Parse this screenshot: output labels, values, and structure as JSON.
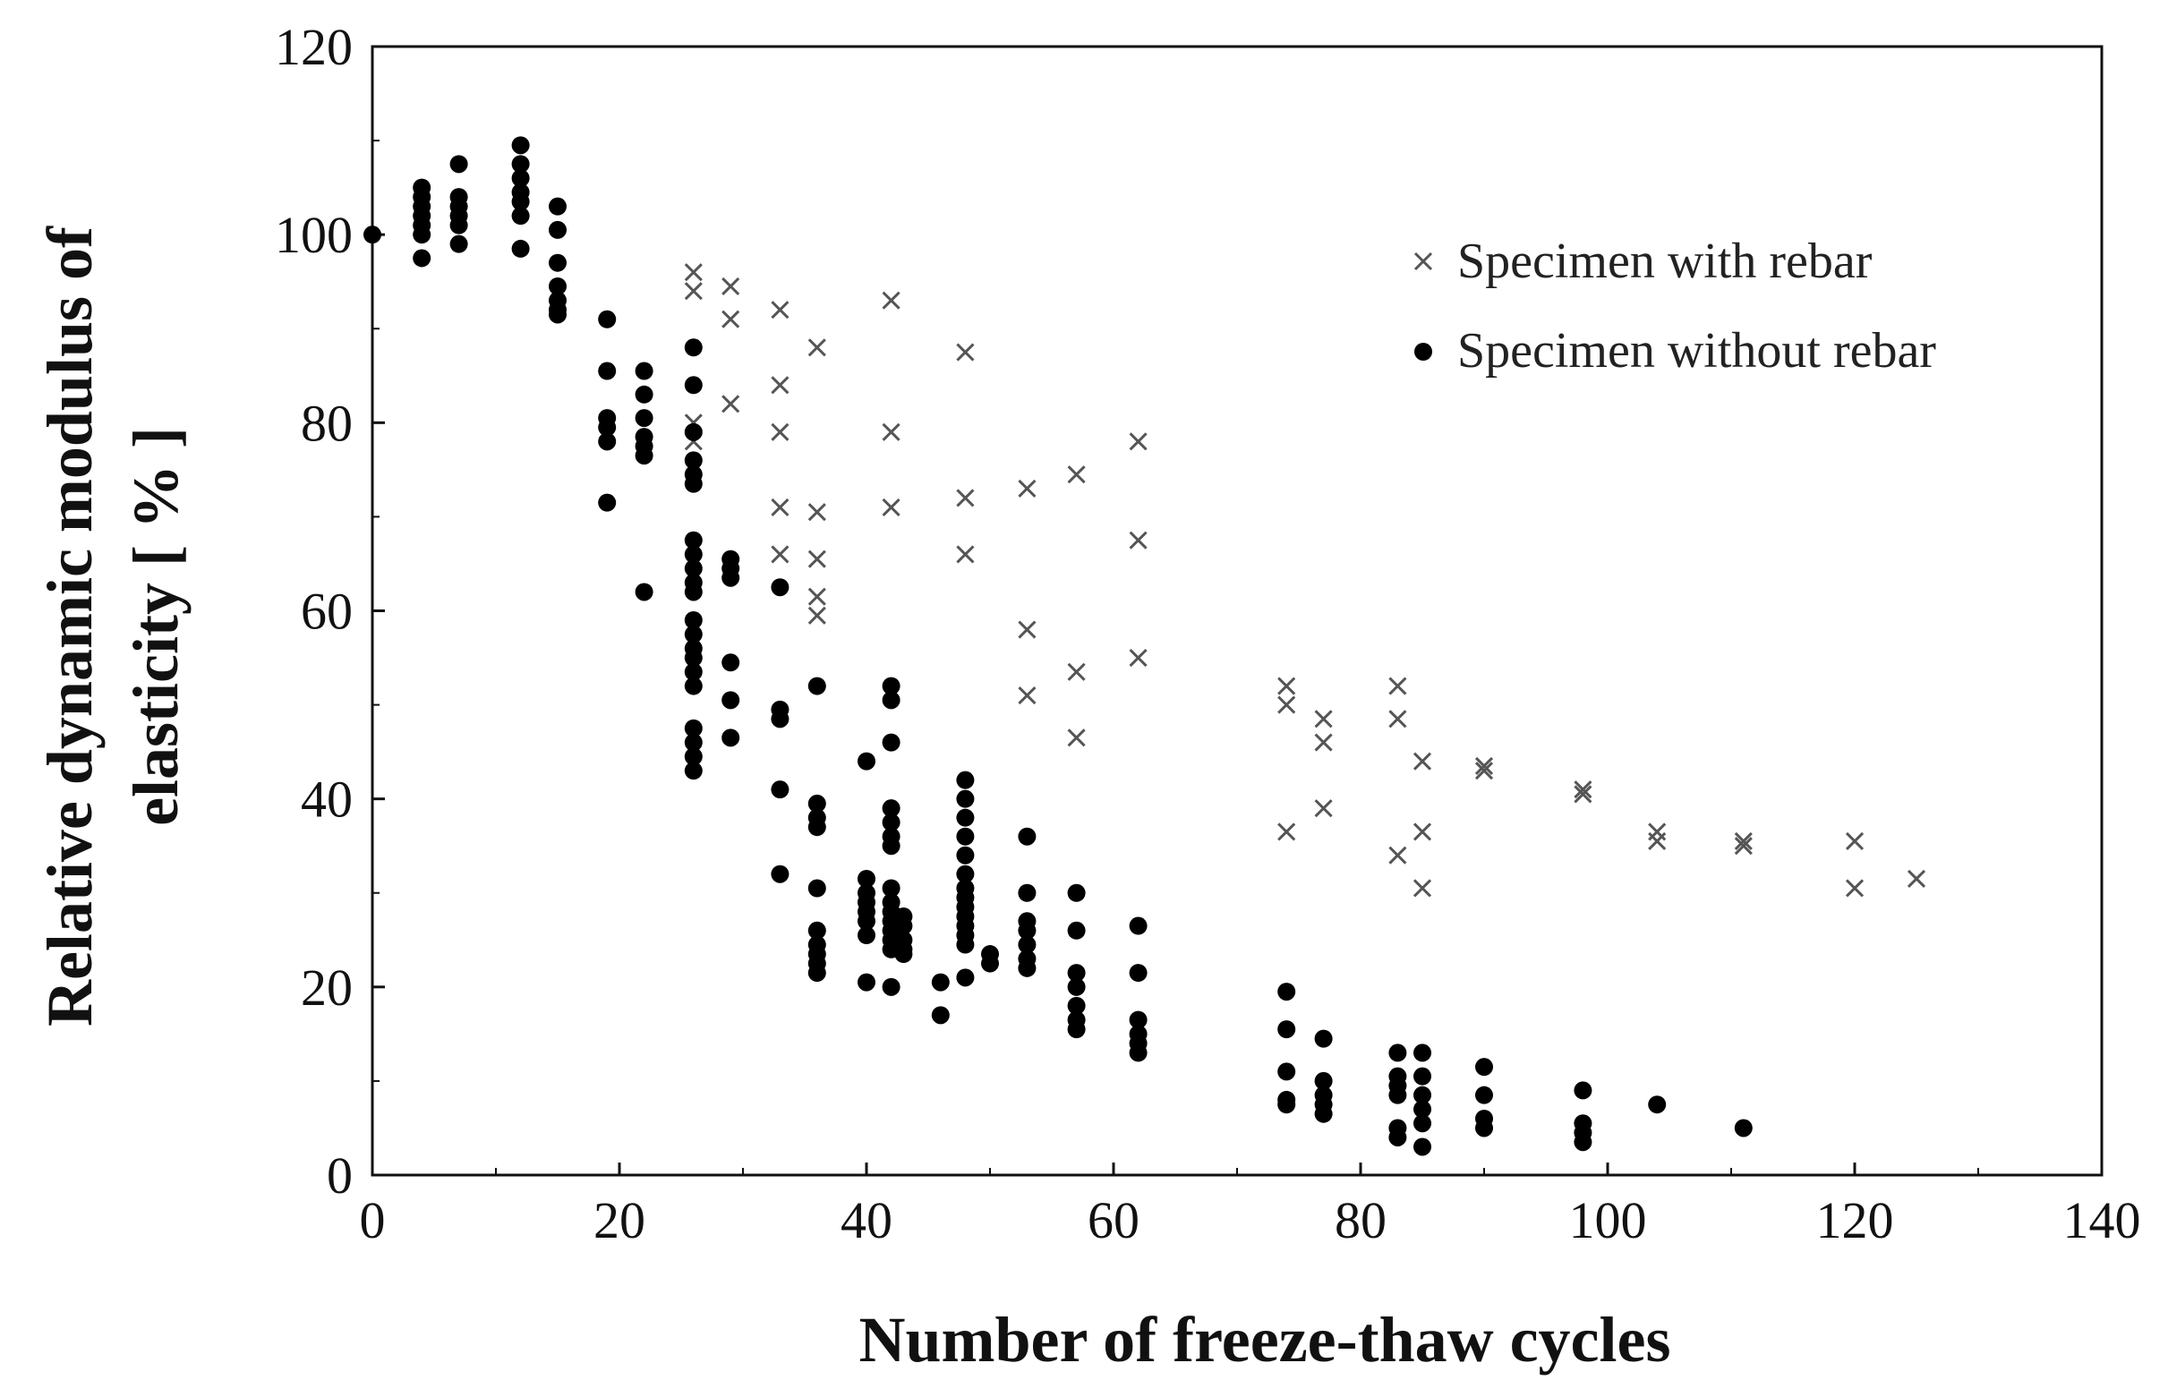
{
  "chart_data": {
    "type": "scatter",
    "title": "",
    "xlabel": "Number of freeze-thaw cycles",
    "ylabel_line1": "Relative dynamic modulus of",
    "ylabel_line2": "elasticity [ % ]",
    "xlim": [
      0,
      140
    ],
    "ylim": [
      0,
      120
    ],
    "xticks": [
      0,
      20,
      40,
      60,
      80,
      100,
      120,
      140
    ],
    "yticks": [
      0,
      20,
      40,
      60,
      80,
      100,
      120
    ],
    "xtick_labels": [
      "0",
      "20",
      "40",
      "60",
      "80",
      "100",
      "120",
      "140"
    ],
    "ytick_labels": [
      "0",
      "20",
      "40",
      "60",
      "80",
      "100",
      "120"
    ],
    "grid": false,
    "legend_position": "top-right",
    "series": [
      {
        "name": "Specimen with rebar",
        "marker": "x",
        "color": "#555555",
        "points": [
          [
            26,
            96
          ],
          [
            26,
            94
          ],
          [
            26,
            80
          ],
          [
            26,
            78
          ],
          [
            29,
            94.5
          ],
          [
            29,
            91
          ],
          [
            29,
            82
          ],
          [
            33,
            92
          ],
          [
            33,
            84
          ],
          [
            33,
            79
          ],
          [
            33,
            71
          ],
          [
            33,
            66
          ],
          [
            36,
            88
          ],
          [
            36,
            70.5
          ],
          [
            36,
            65.5
          ],
          [
            36,
            61.5
          ],
          [
            36,
            59.5
          ],
          [
            42,
            93
          ],
          [
            42,
            79
          ],
          [
            42,
            71
          ],
          [
            48,
            87.5
          ],
          [
            48,
            72
          ],
          [
            48,
            66
          ],
          [
            53,
            73
          ],
          [
            53,
            58
          ],
          [
            53,
            51
          ],
          [
            57,
            74.5
          ],
          [
            57,
            53.5
          ],
          [
            57,
            46.5
          ],
          [
            62,
            78
          ],
          [
            62,
            67.5
          ],
          [
            62,
            55
          ],
          [
            74,
            52
          ],
          [
            74,
            50
          ],
          [
            74,
            36.5
          ],
          [
            77,
            48.5
          ],
          [
            77,
            46
          ],
          [
            77,
            39
          ],
          [
            83,
            52
          ],
          [
            83,
            48.5
          ],
          [
            83,
            34
          ],
          [
            85,
            44
          ],
          [
            85,
            36.5
          ],
          [
            85,
            30.5
          ],
          [
            90,
            43.5
          ],
          [
            90,
            43
          ],
          [
            98,
            41
          ],
          [
            98,
            40.5
          ],
          [
            104,
            36.5
          ],
          [
            104,
            35.5
          ],
          [
            111,
            35.5
          ],
          [
            111,
            35
          ],
          [
            120,
            35.5
          ],
          [
            120,
            30.5
          ],
          [
            125,
            31.5
          ]
        ]
      },
      {
        "name": "Specimen without rebar",
        "marker": "dot",
        "color": "#000000",
        "points": [
          [
            0,
            100
          ],
          [
            4,
            105
          ],
          [
            4,
            104
          ],
          [
            4,
            103
          ],
          [
            4,
            102
          ],
          [
            4,
            101
          ],
          [
            4,
            100
          ],
          [
            4,
            97.5
          ],
          [
            7,
            107.5
          ],
          [
            7,
            104
          ],
          [
            7,
            103
          ],
          [
            7,
            102
          ],
          [
            7,
            101
          ],
          [
            7,
            99
          ],
          [
            12,
            109.5
          ],
          [
            12,
            107.5
          ],
          [
            12,
            106
          ],
          [
            12,
            104.5
          ],
          [
            12,
            103.5
          ],
          [
            12,
            102
          ],
          [
            12,
            98.5
          ],
          [
            15,
            103
          ],
          [
            15,
            100.5
          ],
          [
            15,
            97
          ],
          [
            15,
            94.5
          ],
          [
            15,
            93
          ],
          [
            15,
            92
          ],
          [
            15,
            91.5
          ],
          [
            19,
            91
          ],
          [
            19,
            85.5
          ],
          [
            19,
            80.5
          ],
          [
            19,
            79.5
          ],
          [
            19,
            78
          ],
          [
            19,
            71.5
          ],
          [
            22,
            85.5
          ],
          [
            22,
            83
          ],
          [
            22,
            80.5
          ],
          [
            22,
            78.5
          ],
          [
            22,
            77.5
          ],
          [
            22,
            76.5
          ],
          [
            22,
            62
          ],
          [
            26,
            88
          ],
          [
            26,
            84
          ],
          [
            26,
            79
          ],
          [
            26,
            76
          ],
          [
            26,
            74.5
          ],
          [
            26,
            73.5
          ],
          [
            26,
            67.5
          ],
          [
            26,
            66
          ],
          [
            26,
            64.5
          ],
          [
            26,
            63
          ],
          [
            26,
            62
          ],
          [
            26,
            59
          ],
          [
            26,
            57.5
          ],
          [
            26,
            56
          ],
          [
            26,
            55
          ],
          [
            26,
            53.5
          ],
          [
            26,
            52
          ],
          [
            26,
            47.5
          ],
          [
            26,
            46
          ],
          [
            26,
            44.5
          ],
          [
            26,
            43
          ],
          [
            29,
            65.5
          ],
          [
            29,
            64.5
          ],
          [
            29,
            63.5
          ],
          [
            29,
            54.5
          ],
          [
            29,
            50.5
          ],
          [
            29,
            46.5
          ],
          [
            33,
            62.5
          ],
          [
            33,
            49.5
          ],
          [
            33,
            48.5
          ],
          [
            33,
            41
          ],
          [
            33,
            32
          ],
          [
            36,
            52
          ],
          [
            36,
            39.5
          ],
          [
            36,
            38
          ],
          [
            36,
            37
          ],
          [
            36,
            30.5
          ],
          [
            36,
            26
          ],
          [
            36,
            24.5
          ],
          [
            36,
            23.5
          ],
          [
            36,
            22.5
          ],
          [
            36,
            21.5
          ],
          [
            40,
            44
          ],
          [
            40,
            31.5
          ],
          [
            40,
            30
          ],
          [
            40,
            29
          ],
          [
            40,
            28
          ],
          [
            40,
            27
          ],
          [
            40,
            25.5
          ],
          [
            40,
            20.5
          ],
          [
            42,
            52
          ],
          [
            42,
            50.5
          ],
          [
            42,
            46
          ],
          [
            42,
            39
          ],
          [
            42,
            37.5
          ],
          [
            42,
            36
          ],
          [
            42,
            35
          ],
          [
            42,
            30.5
          ],
          [
            42,
            29
          ],
          [
            42,
            28
          ],
          [
            42,
            27
          ],
          [
            42,
            26
          ],
          [
            42,
            25
          ],
          [
            42,
            24
          ],
          [
            42,
            20
          ],
          [
            43,
            27.5
          ],
          [
            43,
            26.5
          ],
          [
            43,
            25
          ],
          [
            43,
            24
          ],
          [
            43,
            23.5
          ],
          [
            46,
            20.5
          ],
          [
            46,
            17
          ],
          [
            48,
            42
          ],
          [
            48,
            40
          ],
          [
            48,
            38
          ],
          [
            48,
            36
          ],
          [
            48,
            34
          ],
          [
            48,
            32
          ],
          [
            48,
            30.5
          ],
          [
            48,
            29.5
          ],
          [
            48,
            28.5
          ],
          [
            48,
            27.5
          ],
          [
            48,
            26.5
          ],
          [
            48,
            25.5
          ],
          [
            48,
            24.5
          ],
          [
            48,
            21
          ],
          [
            50,
            23.5
          ],
          [
            50,
            22.5
          ],
          [
            53,
            36
          ],
          [
            53,
            30
          ],
          [
            53,
            27
          ],
          [
            53,
            26
          ],
          [
            53,
            24.5
          ],
          [
            53,
            23
          ],
          [
            53,
            22
          ],
          [
            57,
            30
          ],
          [
            57,
            26
          ],
          [
            57,
            21.5
          ],
          [
            57,
            20
          ],
          [
            57,
            18
          ],
          [
            57,
            16.5
          ],
          [
            57,
            15.5
          ],
          [
            62,
            26.5
          ],
          [
            62,
            21.5
          ],
          [
            62,
            16.5
          ],
          [
            62,
            15
          ],
          [
            62,
            14
          ],
          [
            62,
            13
          ],
          [
            74,
            19.5
          ],
          [
            74,
            15.5
          ],
          [
            74,
            11
          ],
          [
            74,
            8
          ],
          [
            74,
            7.5
          ],
          [
            77,
            14.5
          ],
          [
            77,
            10
          ],
          [
            77,
            8.5
          ],
          [
            77,
            7.5
          ],
          [
            77,
            6.5
          ],
          [
            83,
            13
          ],
          [
            83,
            10.5
          ],
          [
            83,
            9.5
          ],
          [
            83,
            8.5
          ],
          [
            83,
            5
          ],
          [
            83,
            4
          ],
          [
            85,
            13
          ],
          [
            85,
            10.5
          ],
          [
            85,
            8.5
          ],
          [
            85,
            7
          ],
          [
            85,
            5.5
          ],
          [
            85,
            3
          ],
          [
            90,
            11.5
          ],
          [
            90,
            8.5
          ],
          [
            90,
            6
          ],
          [
            90,
            5
          ],
          [
            98,
            9
          ],
          [
            98,
            5.5
          ],
          [
            98,
            4.5
          ],
          [
            98,
            3.5
          ],
          [
            104,
            7.5
          ],
          [
            111,
            5
          ]
        ]
      }
    ]
  }
}
